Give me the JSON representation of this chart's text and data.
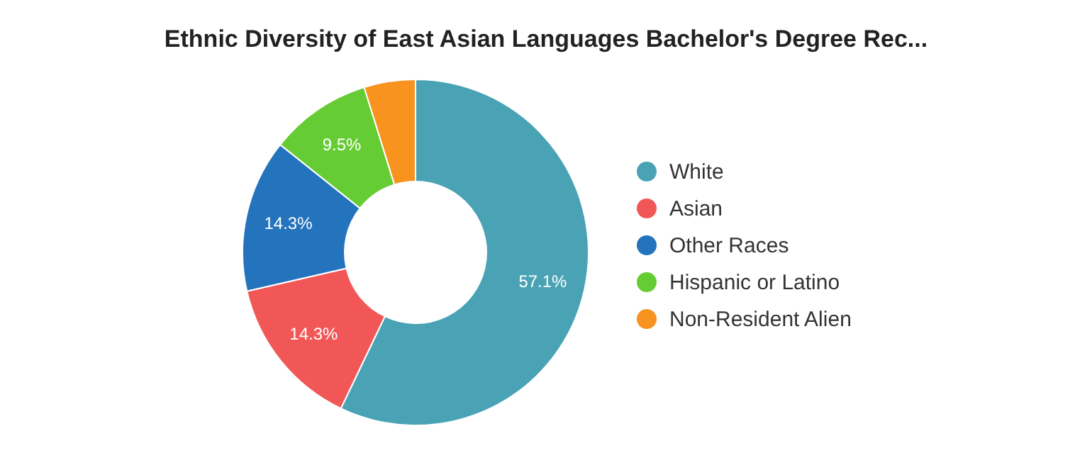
{
  "chart_data": {
    "type": "donut",
    "title": "Ethnic Diversity of East Asian Languages Bachelor's Degree Rec...",
    "categories": [
      "White",
      "Asian",
      "Other Races",
      "Hispanic or Latino",
      "Non-Resident Alien"
    ],
    "values": [
      57.1,
      14.3,
      14.3,
      9.5,
      4.8
    ],
    "value_labels": [
      "57.1%",
      "14.3%",
      "14.3%",
      "9.5%",
      null
    ],
    "colors": [
      "#4aa3b5",
      "#f25757",
      "#2473bd",
      "#66cc33",
      "#f7931e"
    ],
    "legend": "right"
  }
}
